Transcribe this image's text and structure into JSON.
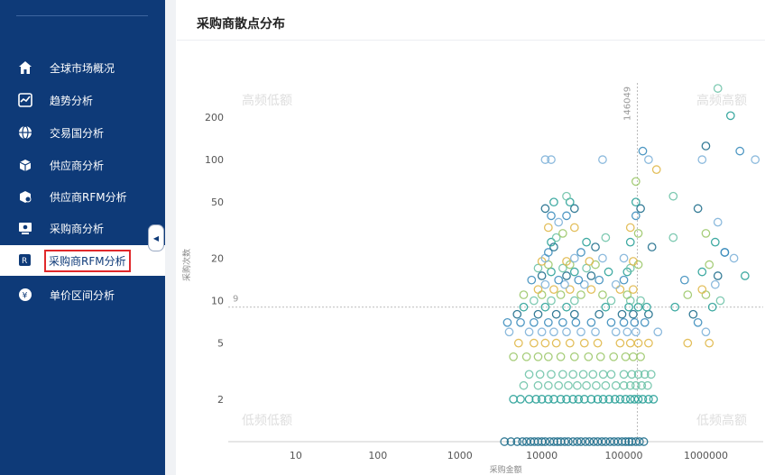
{
  "sidebar": {
    "items": [
      {
        "label": "全球市场概况",
        "icon": "home-icon"
      },
      {
        "label": "趋势分析",
        "icon": "trend-icon"
      },
      {
        "label": "交易国分析",
        "icon": "globe-icon"
      },
      {
        "label": "供应商分析",
        "icon": "supplier-icon"
      },
      {
        "label": "供应商RFM分析",
        "icon": "supplier-rfm-icon"
      },
      {
        "label": "采购商分析",
        "icon": "buyer-icon"
      },
      {
        "label": "采购商RFM分析",
        "icon": "buyer-rfm-icon",
        "active": true
      },
      {
        "label": "单价区间分析",
        "icon": "price-icon"
      }
    ]
  },
  "panel": {
    "title": "采购商散点分布"
  },
  "chart_data": {
    "type": "scatter",
    "title": "采购商散点分布",
    "xlabel": "采购金额",
    "ylabel": "采购次数",
    "x_scale": "log",
    "y_scale": "log",
    "xlim": [
      1.5,
      5000000
    ],
    "ylim": [
      1,
      350
    ],
    "x_ticks": [
      {
        "value": 10,
        "label": "10"
      },
      {
        "value": 100,
        "label": "100"
      },
      {
        "value": 1000,
        "label": "1000"
      },
      {
        "value": 10000,
        "label": "10000"
      },
      {
        "value": 100000,
        "label": "100000"
      },
      {
        "value": 1000000,
        "label": "1000000"
      }
    ],
    "y_ticks": [
      {
        "value": 2,
        "label": "2"
      },
      {
        "value": 5,
        "label": "5"
      },
      {
        "value": 10,
        "label": "10"
      },
      {
        "value": 20,
        "label": "20"
      },
      {
        "value": 50,
        "label": "50"
      },
      {
        "value": 100,
        "label": "100"
      },
      {
        "value": 200,
        "label": "200"
      }
    ],
    "reference_lines": {
      "x": 146049,
      "x_label": "146049",
      "y": 9,
      "y_label": "9"
    },
    "quadrant_labels": {
      "top_left": "高频低额",
      "top_right": "高频高额",
      "bottom_left": "低频低额",
      "bottom_right": "低频高额"
    },
    "grid": false,
    "legend": "none",
    "colors": [
      "#3c8dbc",
      "#1f6e8c",
      "#2aa198",
      "#6fc3a9",
      "#9cc86a",
      "#e0b84a",
      "#7fb2d9"
    ],
    "points": [
      [
        1,
        3500,
        1
      ],
      [
        1,
        4200,
        1
      ],
      [
        1,
        5000,
        1
      ],
      [
        1,
        5800,
        1
      ],
      [
        1,
        6500,
        1
      ],
      [
        1,
        7300,
        1
      ],
      [
        1,
        8100,
        1
      ],
      [
        1,
        9000,
        1
      ],
      [
        1,
        10000,
        1
      ],
      [
        1,
        11000,
        1
      ],
      [
        1,
        12500,
        1
      ],
      [
        1,
        14000,
        1
      ],
      [
        1,
        15500,
        1
      ],
      [
        1,
        17000,
        1
      ],
      [
        1,
        19000,
        1
      ],
      [
        1,
        21000,
        1
      ],
      [
        1,
        24000,
        1
      ],
      [
        1,
        27000,
        1
      ],
      [
        1,
        30000,
        1
      ],
      [
        1,
        34000,
        1
      ],
      [
        1,
        38000,
        1
      ],
      [
        1,
        43000,
        1
      ],
      [
        1,
        48000,
        1
      ],
      [
        1,
        54000,
        1
      ],
      [
        1,
        60000,
        1
      ],
      [
        1,
        68000,
        1
      ],
      [
        1,
        76000,
        1
      ],
      [
        1,
        85000,
        1
      ],
      [
        1,
        95000,
        1
      ],
      [
        1,
        105000,
        1
      ],
      [
        1,
        115000,
        1
      ],
      [
        1,
        125000,
        1
      ],
      [
        1,
        140000,
        1
      ],
      [
        1,
        155000,
        1
      ],
      [
        1,
        175000,
        1
      ],
      [
        2,
        4500,
        2
      ],
      [
        2,
        5500,
        2
      ],
      [
        2,
        7000,
        2
      ],
      [
        2,
        8500,
        2
      ],
      [
        2,
        10000,
        2
      ],
      [
        2,
        12000,
        2
      ],
      [
        2,
        14000,
        2
      ],
      [
        2,
        17000,
        2
      ],
      [
        2,
        20000,
        2
      ],
      [
        2,
        24000,
        2
      ],
      [
        2,
        28000,
        2
      ],
      [
        2,
        33000,
        2
      ],
      [
        2,
        40000,
        2
      ],
      [
        2,
        48000,
        2
      ],
      [
        2,
        56000,
        2
      ],
      [
        2,
        66000,
        2
      ],
      [
        2,
        78000,
        2
      ],
      [
        2,
        90000,
        2
      ],
      [
        2,
        105000,
        2
      ],
      [
        2,
        120000,
        2
      ],
      [
        2,
        135000,
        2
      ],
      [
        2,
        150000,
        2
      ],
      [
        2,
        170000,
        2
      ],
      [
        2,
        200000,
        2
      ],
      [
        2,
        230000,
        2
      ],
      [
        2.5,
        6000,
        3
      ],
      [
        2.5,
        9000,
        3
      ],
      [
        2.5,
        12000,
        3
      ],
      [
        2.5,
        16000,
        3
      ],
      [
        2.5,
        21000,
        3
      ],
      [
        2.5,
        27000,
        3
      ],
      [
        2.5,
        35000,
        3
      ],
      [
        2.5,
        46000,
        3
      ],
      [
        2.5,
        60000,
        3
      ],
      [
        2.5,
        80000,
        3
      ],
      [
        2.5,
        100000,
        3
      ],
      [
        2.5,
        120000,
        3
      ],
      [
        2.5,
        140000,
        3
      ],
      [
        2.5,
        165000,
        3
      ],
      [
        2.5,
        195000,
        3
      ],
      [
        3,
        7000,
        3
      ],
      [
        3,
        9500,
        3
      ],
      [
        3,
        13000,
        3
      ],
      [
        3,
        18000,
        3
      ],
      [
        3,
        24000,
        3
      ],
      [
        3,
        32000,
        3
      ],
      [
        3,
        42000,
        3
      ],
      [
        3,
        56000,
        3
      ],
      [
        3,
        70000,
        3
      ],
      [
        3,
        100000,
        3
      ],
      [
        3,
        125000,
        3
      ],
      [
        3,
        150000,
        3
      ],
      [
        3,
        180000,
        3
      ],
      [
        3,
        215000,
        3
      ],
      [
        4,
        4500,
        4
      ],
      [
        4,
        6500,
        4
      ],
      [
        4,
        9000,
        4
      ],
      [
        4,
        12000,
        4
      ],
      [
        4,
        17000,
        4
      ],
      [
        4,
        25000,
        4
      ],
      [
        4,
        37000,
        4
      ],
      [
        4,
        52000,
        4
      ],
      [
        4,
        75000,
        4
      ],
      [
        4,
        105000,
        4
      ],
      [
        4,
        130000,
        4
      ],
      [
        4,
        160000,
        4
      ],
      [
        5,
        5200,
        5
      ],
      [
        5,
        8000,
        5
      ],
      [
        5,
        11000,
        5
      ],
      [
        5,
        15000,
        5
      ],
      [
        5,
        22000,
        5
      ],
      [
        5,
        33000,
        5
      ],
      [
        5,
        48000,
        5
      ],
      [
        5,
        90000,
        5
      ],
      [
        5,
        120000,
        5
      ],
      [
        5,
        150000,
        5
      ],
      [
        5,
        200000,
        5
      ],
      [
        5,
        600000,
        5
      ],
      [
        5,
        1100000,
        5
      ],
      [
        6,
        4000,
        6
      ],
      [
        6,
        7000,
        6
      ],
      [
        6,
        10000,
        6
      ],
      [
        6,
        14000,
        6
      ],
      [
        6,
        20000,
        6
      ],
      [
        6,
        30000,
        6
      ],
      [
        6,
        45000,
        6
      ],
      [
        6,
        80000,
        6
      ],
      [
        6,
        110000,
        6
      ],
      [
        6,
        140000,
        6
      ],
      [
        6,
        260000,
        6
      ],
      [
        6,
        1000000,
        6
      ],
      [
        7,
        3800,
        0
      ],
      [
        7,
        5500,
        0
      ],
      [
        7,
        8000,
        0
      ],
      [
        7,
        12000,
        0
      ],
      [
        7,
        18000,
        0
      ],
      [
        7,
        26000,
        0
      ],
      [
        7,
        40000,
        0
      ],
      [
        7,
        70000,
        0
      ],
      [
        7,
        100000,
        0
      ],
      [
        7,
        135000,
        0
      ],
      [
        7,
        180000,
        0
      ],
      [
        7,
        800000,
        0
      ],
      [
        8,
        5000,
        1
      ],
      [
        8,
        9000,
        1
      ],
      [
        8,
        15000,
        1
      ],
      [
        8,
        25000,
        1
      ],
      [
        8,
        50000,
        1
      ],
      [
        8,
        95000,
        1
      ],
      [
        8,
        130000,
        1
      ],
      [
        8,
        200000,
        1
      ],
      [
        8,
        700000,
        1
      ],
      [
        9,
        6000,
        2
      ],
      [
        9,
        11000,
        2
      ],
      [
        9,
        20000,
        2
      ],
      [
        9,
        60000,
        2
      ],
      [
        9,
        115000,
        2
      ],
      [
        9,
        150000,
        2
      ],
      [
        9,
        190000,
        2
      ],
      [
        9,
        420000,
        2
      ],
      [
        9,
        1200000,
        2
      ],
      [
        10,
        8000,
        3
      ],
      [
        10,
        13000,
        3
      ],
      [
        10,
        25000,
        3
      ],
      [
        10,
        70000,
        3
      ],
      [
        10,
        120000,
        3
      ],
      [
        10,
        160000,
        3
      ],
      [
        10,
        1500000,
        3
      ],
      [
        11,
        6000,
        4
      ],
      [
        11,
        10000,
        4
      ],
      [
        11,
        17000,
        4
      ],
      [
        11,
        30000,
        4
      ],
      [
        11,
        55000,
        4
      ],
      [
        11,
        110000,
        4
      ],
      [
        11,
        600000,
        4
      ],
      [
        11,
        1000000,
        4
      ],
      [
        12,
        9000,
        5
      ],
      [
        12,
        14000,
        5
      ],
      [
        12,
        22000,
        5
      ],
      [
        12,
        40000,
        5
      ],
      [
        12,
        90000,
        5
      ],
      [
        12,
        130000,
        5
      ],
      [
        12,
        900000,
        5
      ],
      [
        13,
        11000,
        6
      ],
      [
        13,
        19000,
        6
      ],
      [
        13,
        33000,
        6
      ],
      [
        13,
        80000,
        6
      ],
      [
        13,
        1300000,
        6
      ],
      [
        14,
        7500,
        0
      ],
      [
        14,
        16000,
        0
      ],
      [
        14,
        28000,
        0
      ],
      [
        14,
        50000,
        0
      ],
      [
        14,
        100000,
        0
      ],
      [
        14,
        550000,
        0
      ],
      [
        15,
        10000,
        1
      ],
      [
        15,
        20000,
        1
      ],
      [
        15,
        40000,
        1
      ],
      [
        15,
        1400000,
        1
      ],
      [
        15,
        3000000,
        2
      ],
      [
        16,
        13000,
        2
      ],
      [
        16,
        25000,
        2
      ],
      [
        16,
        65000,
        2
      ],
      [
        16,
        110000,
        2
      ],
      [
        16,
        900000,
        2
      ],
      [
        17,
        9000,
        3
      ],
      [
        17,
        18000,
        3
      ],
      [
        17,
        35000,
        3
      ],
      [
        17,
        120000,
        3
      ],
      [
        18,
        12000,
        4
      ],
      [
        18,
        22000,
        4
      ],
      [
        18,
        45000,
        4
      ],
      [
        18,
        150000,
        4
      ],
      [
        18,
        1100000,
        4
      ],
      [
        19,
        10000,
        5
      ],
      [
        19,
        20000,
        5
      ],
      [
        19,
        38000,
        5
      ],
      [
        19,
        130000,
        5
      ],
      [
        20,
        11000,
        6
      ],
      [
        20,
        25000,
        6
      ],
      [
        20,
        55000,
        6
      ],
      [
        20,
        100000,
        6
      ],
      [
        20,
        2200000,
        6
      ],
      [
        22,
        12000,
        0
      ],
      [
        22,
        30000,
        0
      ],
      [
        22,
        1700000,
        0
      ],
      [
        22,
        1700000,
        0
      ],
      [
        24,
        14000,
        1
      ],
      [
        24,
        45000,
        1
      ],
      [
        24,
        220000,
        1
      ],
      [
        26,
        13000,
        2
      ],
      [
        26,
        35000,
        2
      ],
      [
        26,
        120000,
        2
      ],
      [
        26,
        1300000,
        2
      ],
      [
        28,
        15000,
        3
      ],
      [
        28,
        60000,
        3
      ],
      [
        28,
        400000,
        3
      ],
      [
        30,
        18000,
        4
      ],
      [
        30,
        150000,
        4
      ],
      [
        30,
        1000000,
        4
      ],
      [
        33,
        12000,
        5
      ],
      [
        33,
        25000,
        5
      ],
      [
        33,
        120000,
        5
      ],
      [
        36,
        16000,
        6
      ],
      [
        36,
        1400000,
        6
      ],
      [
        40,
        13000,
        0
      ],
      [
        40,
        20000,
        0
      ],
      [
        40,
        140000,
        0
      ],
      [
        45,
        11000,
        1
      ],
      [
        45,
        25000,
        1
      ],
      [
        45,
        160000,
        1
      ],
      [
        45,
        800000,
        1
      ],
      [
        50,
        14000,
        2
      ],
      [
        50,
        22000,
        2
      ],
      [
        50,
        140000,
        2
      ],
      [
        55,
        20000,
        3
      ],
      [
        55,
        400000,
        3
      ],
      [
        70,
        140000,
        4
      ],
      [
        85,
        250000,
        5
      ],
      [
        100,
        11000,
        6
      ],
      [
        100,
        13000,
        6
      ],
      [
        100,
        55000,
        6
      ],
      [
        100,
        200000,
        6
      ],
      [
        100,
        900000,
        6
      ],
      [
        100,
        4000000,
        6
      ],
      [
        115,
        170000,
        0
      ],
      [
        115,
        2600000,
        0
      ],
      [
        125,
        1000000,
        1
      ],
      [
        205,
        2000000,
        2
      ],
      [
        320,
        1400000,
        3
      ]
    ]
  }
}
